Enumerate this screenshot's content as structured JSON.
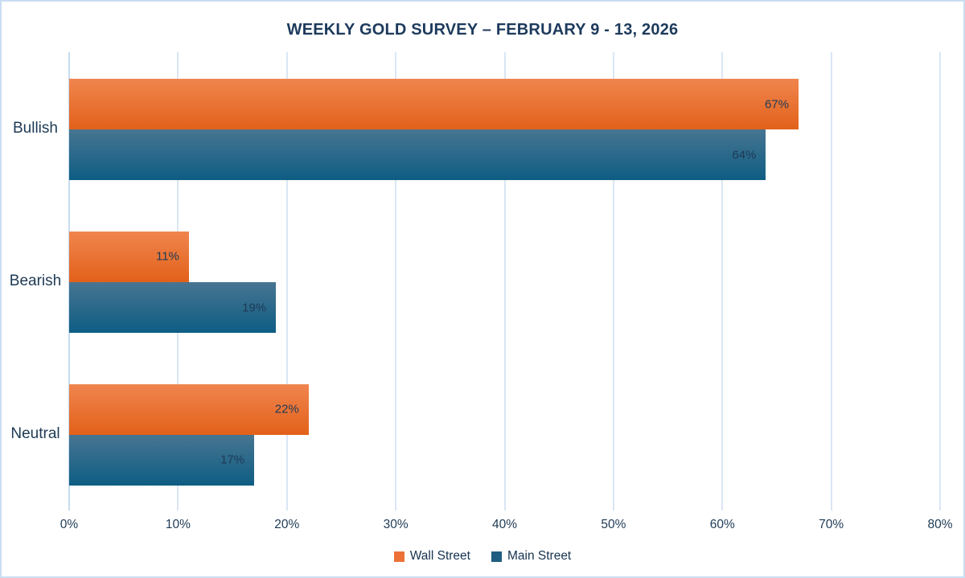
{
  "chart_data": {
    "type": "bar",
    "orientation": "horizontal",
    "title": "WEEKLY GOLD SURVEY – FEBRUARY 9 - 13, 2026",
    "categories": [
      "Bullish",
      "Bearish",
      "Neutral"
    ],
    "series": [
      {
        "name": "Wall Street",
        "values": [
          67,
          11,
          22
        ],
        "color_top": "#f0854e",
        "color_bottom": "#e2611a",
        "legend_color": "#ec7137"
      },
      {
        "name": "Main Street",
        "values": [
          64,
          19,
          17
        ],
        "color_top": "#477591",
        "color_bottom": "#0e5d84",
        "legend_color": "#1f5d80"
      }
    ],
    "value_suffix": "%",
    "x_ticks": [
      "0%",
      "10%",
      "20%",
      "30%",
      "40%",
      "50%",
      "60%",
      "70%",
      "80%"
    ],
    "xlim": [
      0,
      80
    ],
    "grid": true,
    "legend_position": "bottom",
    "colors": {
      "background": "#ffffff",
      "frame_border": "#cadef2",
      "title_text": "#1d3a5c",
      "axis_text": "#1e3a55",
      "gridline": "#d9e6f5",
      "zero_axis_line": "#c7dcf0",
      "bar_value_text": "#1e3a55"
    }
  }
}
